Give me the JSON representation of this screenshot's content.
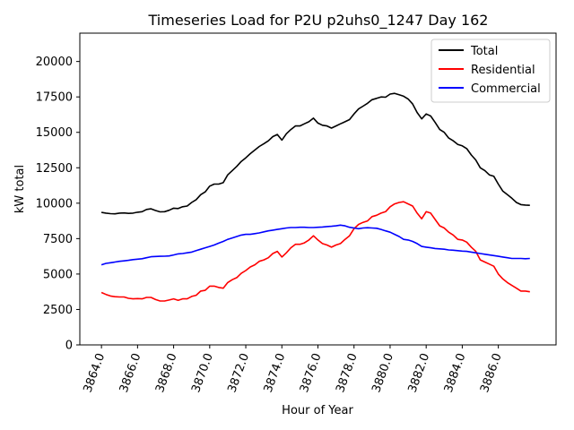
{
  "chart_data": {
    "type": "line",
    "title": "Timeseries Load for P2U p2uhs0_1247  Day 162",
    "xlabel": "Hour of Year",
    "ylabel": "kW total",
    "xlim": [
      3862.8,
      3889.2
    ],
    "ylim": [
      0,
      22000
    ],
    "x_ticks": [
      3864,
      3866,
      3868,
      3870,
      3872,
      3874,
      3876,
      3878,
      3880,
      3882,
      3884,
      3886
    ],
    "x_tick_labels": [
      "3864.0",
      "3866.0",
      "3868.0",
      "3870.0",
      "3872.0",
      "3874.0",
      "3876.0",
      "3878.0",
      "3880.0",
      "3882.0",
      "3884.0",
      "3886.0"
    ],
    "y_ticks": [
      0,
      2500,
      5000,
      7500,
      10000,
      12500,
      15000,
      17500,
      20000
    ],
    "y_tick_labels": [
      "0",
      "2500",
      "5000",
      "7500",
      "10000",
      "12500",
      "15000",
      "17500",
      "20000"
    ],
    "legend_position": "top-right",
    "x": [
      3864.0,
      3864.25,
      3864.5,
      3864.75,
      3865.0,
      3865.25,
      3865.5,
      3865.75,
      3866.0,
      3866.25,
      3866.5,
      3866.75,
      3867.0,
      3867.25,
      3867.5,
      3867.75,
      3868.0,
      3868.25,
      3868.5,
      3868.75,
      3869.0,
      3869.25,
      3869.5,
      3869.75,
      3870.0,
      3870.25,
      3870.5,
      3870.75,
      3871.0,
      3871.25,
      3871.5,
      3871.75,
      3872.0,
      3872.25,
      3872.5,
      3872.75,
      3873.0,
      3873.25,
      3873.5,
      3873.75,
      3874.0,
      3874.25,
      3874.5,
      3874.75,
      3875.0,
      3875.25,
      3875.5,
      3875.75,
      3876.0,
      3876.25,
      3876.5,
      3876.75,
      3877.0,
      3877.25,
      3877.5,
      3877.75,
      3878.0,
      3878.25,
      3878.5,
      3878.75,
      3879.0,
      3879.25,
      3879.5,
      3879.75,
      3880.0,
      3880.25,
      3880.5,
      3880.75,
      3881.0,
      3881.25,
      3881.5,
      3881.75,
      3882.0,
      3882.25,
      3882.5,
      3882.75,
      3883.0,
      3883.25,
      3883.5,
      3883.75,
      3884.0,
      3884.25,
      3884.5,
      3884.75,
      3885.0,
      3885.25,
      3885.5,
      3885.75,
      3886.0,
      3886.25,
      3886.5,
      3886.75,
      3887.0,
      3887.25,
      3887.5,
      3887.75
    ],
    "series": [
      {
        "name": "Total",
        "color": "#000000",
        "values": [
          9350,
          9300,
          9260,
          9250,
          9300,
          9310,
          9280,
          9300,
          9360,
          9400,
          9560,
          9600,
          9480,
          9390,
          9400,
          9500,
          9650,
          9620,
          9750,
          9800,
          10050,
          10250,
          10600,
          10800,
          11200,
          11350,
          11350,
          11450,
          12000,
          12300,
          12600,
          12950,
          13200,
          13500,
          13750,
          14000,
          14200,
          14400,
          14700,
          14850,
          14450,
          14900,
          15200,
          15450,
          15450,
          15600,
          15750,
          16000,
          15650,
          15500,
          15450,
          15300,
          15450,
          15600,
          15750,
          15900,
          16300,
          16650,
          16850,
          17050,
          17300,
          17400,
          17500,
          17480,
          17700,
          17750,
          17650,
          17550,
          17350,
          17000,
          16400,
          15950,
          16300,
          16150,
          15700,
          15200,
          15000,
          14600,
          14400,
          14150,
          14050,
          13850,
          13400,
          13050,
          12500,
          12300,
          12000,
          11900,
          11350,
          10850,
          10600,
          10350,
          10050,
          9900,
          9870,
          9850
        ]
      },
      {
        "name": "Residential",
        "color": "#ff0000",
        "values": [
          3700,
          3560,
          3450,
          3400,
          3380,
          3380,
          3290,
          3250,
          3270,
          3250,
          3350,
          3350,
          3200,
          3100,
          3100,
          3170,
          3250,
          3150,
          3250,
          3250,
          3420,
          3500,
          3800,
          3850,
          4150,
          4150,
          4050,
          4000,
          4400,
          4600,
          4750,
          5050,
          5250,
          5500,
          5650,
          5900,
          6000,
          6150,
          6450,
          6600,
          6200,
          6500,
          6850,
          7100,
          7100,
          7200,
          7400,
          7700,
          7400,
          7150,
          7050,
          6900,
          7050,
          7150,
          7450,
          7700,
          8200,
          8500,
          8650,
          8750,
          9050,
          9150,
          9300,
          9400,
          9750,
          9950,
          10050,
          10100,
          9950,
          9800,
          9300,
          8900,
          9400,
          9300,
          8850,
          8400,
          8250,
          7950,
          7750,
          7450,
          7400,
          7250,
          6900,
          6600,
          6000,
          5850,
          5700,
          5550,
          5000,
          4650,
          4400,
          4200,
          4000,
          3800,
          3800,
          3750
        ]
      },
      {
        "name": "Commercial",
        "color": "#0000ff",
        "values": [
          5650,
          5750,
          5800,
          5850,
          5900,
          5930,
          5970,
          6020,
          6050,
          6080,
          6150,
          6220,
          6240,
          6250,
          6260,
          6280,
          6350,
          6420,
          6450,
          6500,
          6550,
          6650,
          6750,
          6850,
          6950,
          7050,
          7180,
          7300,
          7450,
          7550,
          7650,
          7750,
          7800,
          7800,
          7850,
          7900,
          7980,
          8050,
          8100,
          8150,
          8200,
          8250,
          8280,
          8280,
          8300,
          8300,
          8280,
          8280,
          8300,
          8320,
          8350,
          8370,
          8400,
          8450,
          8400,
          8300,
          8250,
          8200,
          8250,
          8270,
          8250,
          8230,
          8150,
          8050,
          7950,
          7800,
          7650,
          7450,
          7400,
          7300,
          7150,
          6950,
          6900,
          6850,
          6800,
          6780,
          6750,
          6700,
          6680,
          6650,
          6620,
          6600,
          6550,
          6500,
          6450,
          6400,
          6350,
          6300,
          6250,
          6200,
          6150,
          6100,
          6100,
          6100,
          6080,
          6100
        ]
      }
    ]
  }
}
